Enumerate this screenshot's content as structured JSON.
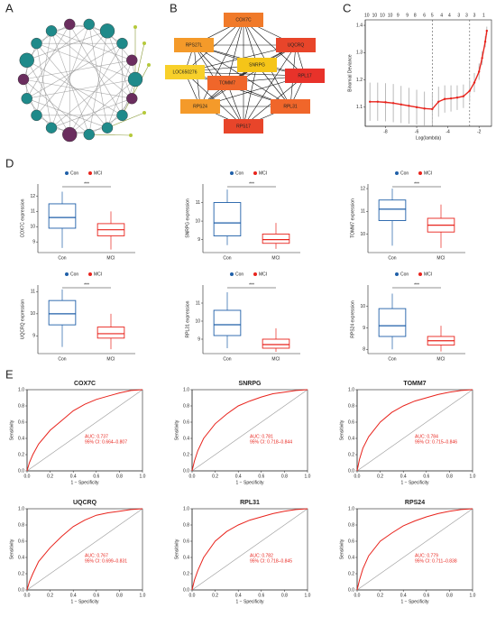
{
  "chart_data": [
    {
      "type": "network_ring",
      "panel": "A"
    },
    {
      "type": "network",
      "panel": "B",
      "nodes": [
        "COX7C",
        "RPS27L",
        "UQCRQ",
        "SNRPG",
        "LOC650276",
        "RPL17",
        "TOMM7",
        "RPS24",
        "RPL31",
        "RPS17"
      ],
      "colors": [
        "#f07a2a",
        "#f49a2a",
        "#e8452a",
        "#f5c518",
        "#f8d02a",
        "#e8322a",
        "#f0662a",
        "#f49a2a",
        "#f0662a",
        "#e8452a"
      ]
    },
    {
      "type": "lasso",
      "panel": "C",
      "xlabel": "Log(lambda)",
      "ylabel": "Binomial Deviance",
      "x": [
        -9.0,
        -8.5,
        -8.0,
        -7.5,
        -7.0,
        -6.5,
        -6.0,
        -5.5,
        -5.0,
        -4.6,
        -4.2,
        -3.8,
        -3.4,
        -3.0,
        -2.6,
        -2.3,
        -2.0,
        -1.8,
        -1.6,
        -1.5
      ],
      "values": [
        1.12,
        1.12,
        1.118,
        1.115,
        1.11,
        1.105,
        1.1,
        1.095,
        1.093,
        1.12,
        1.13,
        1.132,
        1.135,
        1.14,
        1.16,
        1.19,
        1.23,
        1.28,
        1.34,
        1.38
      ],
      "errors": [
        0.07,
        0.07,
        0.07,
        0.07,
        0.068,
        0.066,
        0.064,
        0.062,
        0.06,
        0.055,
        0.05,
        0.048,
        0.045,
        0.043,
        0.04,
        0.035,
        0.03,
        0.025,
        0.02,
        0.015
      ],
      "color": "#e8231c",
      "vlines": [
        -5.0,
        -2.6
      ],
      "top_x": [
        -9.2,
        -8.7,
        -8.2,
        -7.7,
        -7.2,
        -6.6,
        -6.1,
        -5.5,
        -5.0,
        -4.4,
        -3.9,
        -3.3,
        -2.8,
        -2.3,
        -1.7
      ],
      "top_labels": [
        10,
        10,
        10,
        10,
        9,
        9,
        8,
        6,
        5,
        4,
        4,
        3,
        3,
        3,
        1
      ],
      "xlim": [
        -9.3,
        -1.2
      ],
      "xticks": [
        -8,
        -6,
        -4,
        -2
      ],
      "ylim": [
        1.03,
        1.42
      ],
      "yticks": [
        1.1,
        1.2,
        1.3,
        1.4
      ]
    },
    {
      "type": "box",
      "panel": "D",
      "ylabel": "COX7C expression",
      "significance": "***",
      "ylim": [
        8.3,
        12.8
      ],
      "yticks": [
        9,
        10,
        11,
        12
      ],
      "boxes": [
        {
          "name": "Con",
          "color": "#1f5fa8",
          "min": 8.6,
          "q1": 9.9,
          "median": 10.6,
          "q3": 11.5,
          "max": 12.3
        },
        {
          "name": "MCI",
          "color": "#e8231c",
          "min": 8.5,
          "q1": 9.4,
          "median": 9.8,
          "q3": 10.2,
          "max": 11.0
        }
      ]
    },
    {
      "type": "box",
      "ylabel": "SNRPG expression",
      "significance": "***",
      "ylim": [
        8.3,
        12.0
      ],
      "yticks": [
        9,
        10,
        11
      ],
      "boxes": [
        {
          "name": "Con",
          "color": "#1f5fa8",
          "min": 8.7,
          "q1": 9.2,
          "median": 9.9,
          "q3": 11.0,
          "max": 11.7
        },
        {
          "name": "MCI",
          "color": "#e8231c",
          "min": 8.5,
          "q1": 8.8,
          "median": 9.0,
          "q3": 9.3,
          "max": 9.9
        }
      ]
    },
    {
      "type": "box",
      "ylabel": "TOMM7 expression",
      "significance": "***",
      "ylim": [
        9.2,
        12.2
      ],
      "yticks": [
        10,
        11,
        12
      ],
      "boxes": [
        {
          "name": "Con",
          "color": "#1f5fa8",
          "min": 9.5,
          "q1": 10.6,
          "median": 11.1,
          "q3": 11.5,
          "max": 12.0
        },
        {
          "name": "MCI",
          "color": "#e8231c",
          "min": 9.4,
          "q1": 10.1,
          "median": 10.4,
          "q3": 10.7,
          "max": 11.3
        }
      ]
    },
    {
      "type": "box",
      "ylabel": "UQCRQ expression",
      "significance": "***",
      "ylim": [
        8.2,
        11.3
      ],
      "yticks": [
        9,
        10,
        11
      ],
      "boxes": [
        {
          "name": "Con",
          "color": "#1f5fa8",
          "min": 8.5,
          "q1": 9.5,
          "median": 10.0,
          "q3": 10.6,
          "max": 11.1
        },
        {
          "name": "MCI",
          "color": "#e8231c",
          "min": 8.4,
          "q1": 8.9,
          "median": 9.1,
          "q3": 9.4,
          "max": 10.0
        }
      ]
    },
    {
      "type": "box",
      "ylabel": "RPL31 expression",
      "significance": "***",
      "ylim": [
        8.2,
        12.0
      ],
      "yticks": [
        9,
        10,
        11
      ],
      "boxes": [
        {
          "name": "Con",
          "color": "#1f5fa8",
          "min": 8.5,
          "q1": 9.2,
          "median": 9.8,
          "q3": 10.6,
          "max": 11.6
        },
        {
          "name": "MCI",
          "color": "#e8231c",
          "min": 8.3,
          "q1": 8.5,
          "median": 8.7,
          "q3": 9.0,
          "max": 9.6
        }
      ]
    },
    {
      "type": "box",
      "ylabel": "RPS24 expression",
      "significance": "***",
      "ylim": [
        7.8,
        11.0
      ],
      "yticks": [
        8,
        9,
        10
      ],
      "boxes": [
        {
          "name": "Con",
          "color": "#1f5fa8",
          "min": 8.0,
          "q1": 8.6,
          "median": 9.1,
          "q3": 9.9,
          "max": 10.6
        },
        {
          "name": "MCI",
          "color": "#e8231c",
          "min": 7.9,
          "q1": 8.2,
          "median": 8.4,
          "q3": 8.6,
          "max": 9.1
        }
      ]
    },
    {
      "type": "roc",
      "panel": "E",
      "title": "COX7C",
      "annotations": [
        "AUC: 0.737",
        "95% CI: 0.664–0.807"
      ],
      "x": [
        0,
        0.02,
        0.05,
        0.1,
        0.2,
        0.3,
        0.4,
        0.5,
        0.6,
        0.7,
        0.8,
        0.9,
        1
      ],
      "values": [
        0,
        0.1,
        0.2,
        0.33,
        0.5,
        0.62,
        0.74,
        0.82,
        0.88,
        0.92,
        0.96,
        0.99,
        1
      ],
      "xlabel": "1 − Specificity",
      "ylabel": "Sensitivity",
      "color": "#e8231c",
      "xlim": [
        0,
        1
      ],
      "ylim": [
        0,
        1
      ],
      "xticks": [
        {
          "value": 0,
          "label": "0.0"
        },
        0.2,
        0.4,
        0.6,
        0.8,
        {
          "value": 1,
          "label": "1.0"
        }
      ],
      "yticks": [
        {
          "value": 0,
          "label": "0.0"
        },
        0.2,
        0.4,
        0.6,
        0.8,
        {
          "value": 1,
          "label": "1.0"
        }
      ]
    },
    {
      "type": "roc",
      "title": "SNRPG",
      "annotations": [
        "AUC: 0.781",
        "95% CI: 0.718–0.844"
      ],
      "x": [
        0,
        0.02,
        0.05,
        0.1,
        0.2,
        0.3,
        0.4,
        0.5,
        0.6,
        0.7,
        0.8,
        0.9,
        1
      ],
      "values": [
        0,
        0.12,
        0.25,
        0.4,
        0.58,
        0.7,
        0.8,
        0.86,
        0.91,
        0.95,
        0.97,
        0.99,
        1
      ],
      "xlabel": "1 − Specificity",
      "ylabel": "Sensitivity",
      "color": "#e8231c",
      "xlim": [
        0,
        1
      ],
      "ylim": [
        0,
        1
      ],
      "xticks": [
        {
          "value": 0,
          "label": "0.0"
        },
        0.2,
        0.4,
        0.6,
        0.8,
        {
          "value": 1,
          "label": "1.0"
        }
      ],
      "yticks": [
        {
          "value": 0,
          "label": "0.0"
        },
        0.2,
        0.4,
        0.6,
        0.8,
        {
          "value": 1,
          "label": "1.0"
        }
      ]
    },
    {
      "type": "roc",
      "title": "TOMM7",
      "annotations": [
        "AUC: 0.784",
        "95% CI: 0.715–0.846"
      ],
      "x": [
        0,
        0.02,
        0.05,
        0.1,
        0.2,
        0.3,
        0.4,
        0.5,
        0.6,
        0.7,
        0.8,
        0.9,
        1
      ],
      "values": [
        0,
        0.14,
        0.28,
        0.42,
        0.6,
        0.72,
        0.8,
        0.86,
        0.9,
        0.94,
        0.97,
        0.99,
        1
      ],
      "xlabel": "1 − Specificity",
      "ylabel": "Sensitivity",
      "color": "#e8231c",
      "xlim": [
        0,
        1
      ],
      "ylim": [
        0,
        1
      ],
      "xticks": [
        {
          "value": 0,
          "label": "0.0"
        },
        0.2,
        0.4,
        0.6,
        0.8,
        {
          "value": 1,
          "label": "1.0"
        }
      ],
      "yticks": [
        {
          "value": 0,
          "label": "0.0"
        },
        0.2,
        0.4,
        0.6,
        0.8,
        {
          "value": 1,
          "label": "1.0"
        }
      ]
    },
    {
      "type": "roc",
      "title": "UQCRQ",
      "annotations": [
        "AUC: 0.767",
        "95% CI: 0.699–0.831"
      ],
      "x": [
        0,
        0.02,
        0.05,
        0.1,
        0.2,
        0.3,
        0.4,
        0.5,
        0.6,
        0.7,
        0.8,
        0.9,
        1
      ],
      "values": [
        0,
        0.1,
        0.2,
        0.35,
        0.52,
        0.66,
        0.78,
        0.86,
        0.92,
        0.95,
        0.97,
        0.99,
        1
      ],
      "xlabel": "1 − Specificity",
      "ylabel": "Sensitivity",
      "color": "#e8231c",
      "xlim": [
        0,
        1
      ],
      "ylim": [
        0,
        1
      ],
      "xticks": [
        {
          "value": 0,
          "label": "0.0"
        },
        0.2,
        0.4,
        0.6,
        0.8,
        {
          "value": 1,
          "label": "1.0"
        }
      ],
      "yticks": [
        {
          "value": 0,
          "label": "0.0"
        },
        0.2,
        0.4,
        0.6,
        0.8,
        {
          "value": 1,
          "label": "1.0"
        }
      ]
    },
    {
      "type": "roc",
      "title": "RPL31",
      "annotations": [
        "AUC: 0.782",
        "95% CI: 0.718–0.845"
      ],
      "x": [
        0,
        0.02,
        0.05,
        0.1,
        0.2,
        0.3,
        0.4,
        0.5,
        0.6,
        0.7,
        0.8,
        0.9,
        1
      ],
      "values": [
        0,
        0.12,
        0.24,
        0.4,
        0.6,
        0.72,
        0.8,
        0.86,
        0.9,
        0.94,
        0.97,
        0.99,
        1
      ],
      "xlabel": "1 − Specificity",
      "ylabel": "Sensitivity",
      "color": "#e8231c",
      "xlim": [
        0,
        1
      ],
      "ylim": [
        0,
        1
      ],
      "xticks": [
        {
          "value": 0,
          "label": "0.0"
        },
        0.2,
        0.4,
        0.6,
        0.8,
        {
          "value": 1,
          "label": "1.0"
        }
      ],
      "yticks": [
        {
          "value": 0,
          "label": "0.0"
        },
        0.2,
        0.4,
        0.6,
        0.8,
        {
          "value": 1,
          "label": "1.0"
        }
      ]
    },
    {
      "type": "roc",
      "title": "RPS24",
      "annotations": [
        "AUC: 0.779",
        "95% CI: 0.711–0.838"
      ],
      "x": [
        0,
        0.02,
        0.05,
        0.1,
        0.2,
        0.3,
        0.4,
        0.5,
        0.6,
        0.7,
        0.8,
        0.9,
        1
      ],
      "values": [
        0,
        0.12,
        0.26,
        0.42,
        0.6,
        0.7,
        0.79,
        0.85,
        0.9,
        0.94,
        0.97,
        0.99,
        1
      ],
      "xlabel": "1 − Specificity",
      "ylabel": "Sensitivity",
      "color": "#e8231c",
      "xlim": [
        0,
        1
      ],
      "ylim": [
        0,
        1
      ],
      "xticks": [
        {
          "value": 0,
          "label": "0.0"
        },
        0.2,
        0.4,
        0.6,
        0.8,
        {
          "value": 1,
          "label": "1.0"
        }
      ],
      "yticks": [
        {
          "value": 0,
          "label": "0.0"
        },
        0.2,
        0.4,
        0.6,
        0.8,
        {
          "value": 1,
          "label": "1.0"
        }
      ]
    }
  ]
}
